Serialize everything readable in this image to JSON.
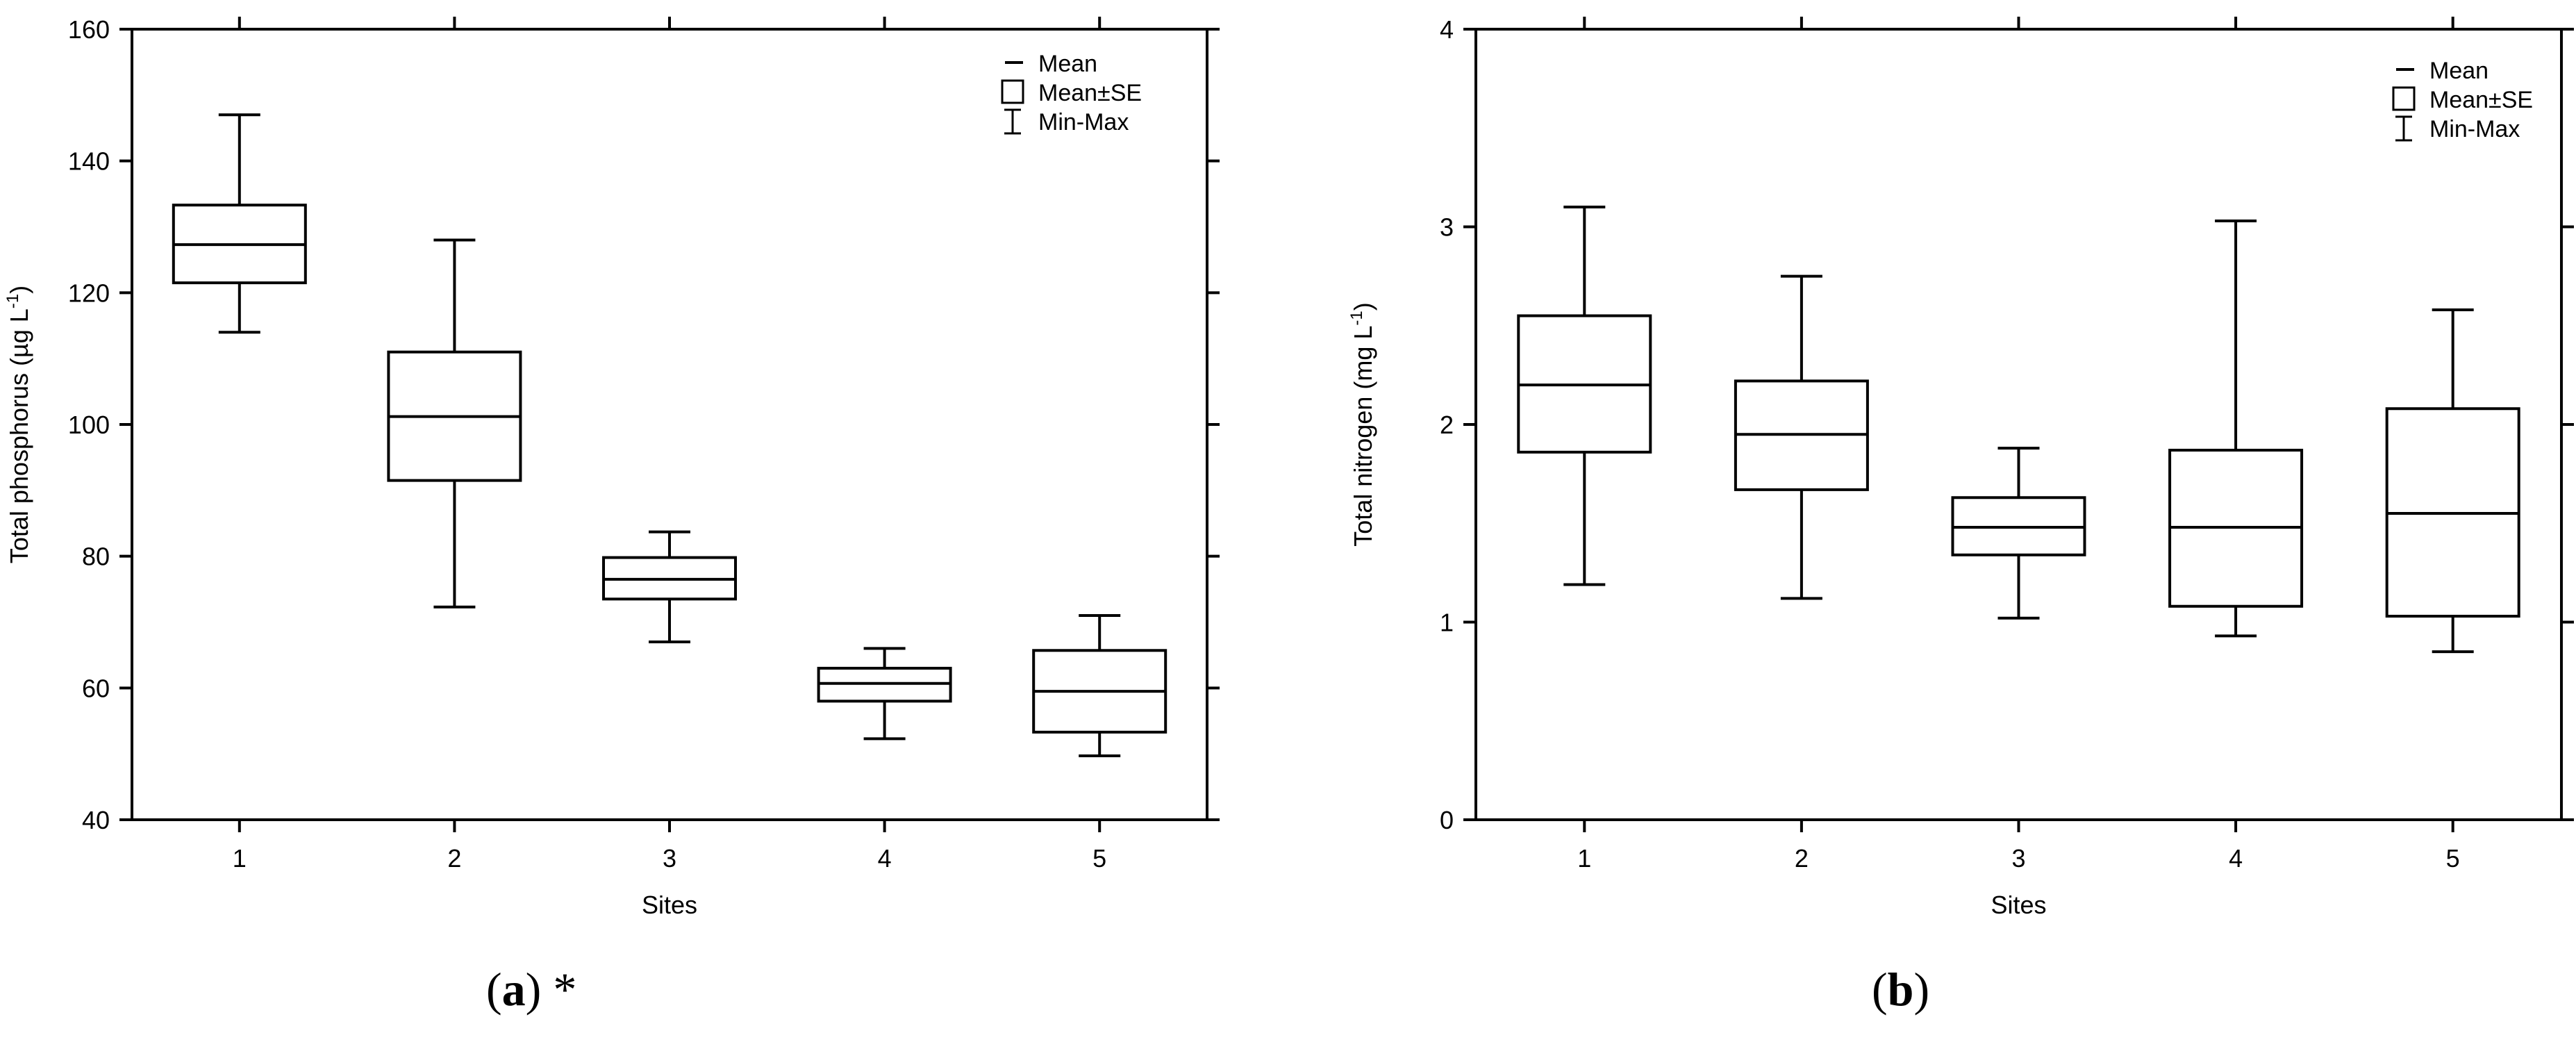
{
  "chart_data": [
    {
      "type": "box",
      "panel_label": "a",
      "panel_suffix": " *",
      "xlabel": "Sites",
      "ylabel": "Total phosphorus (µg L",
      "ylabel_sup": "-1",
      "ylabel_close": ")",
      "ylim": [
        40,
        160
      ],
      "yticks": [
        40,
        60,
        80,
        100,
        120,
        140,
        160
      ],
      "categories": [
        "1",
        "2",
        "3",
        "4",
        "5"
      ],
      "boxes": [
        {
          "mean": 127.3,
          "se_low": 121.5,
          "se_high": 133.3,
          "min": 114.0,
          "max": 147.0
        },
        {
          "mean": 101.2,
          "se_low": 91.5,
          "se_high": 111.0,
          "min": 72.3,
          "max": 128.0
        },
        {
          "mean": 76.5,
          "se_low": 73.5,
          "se_high": 79.8,
          "min": 67.0,
          "max": 83.7
        },
        {
          "mean": 60.7,
          "se_low": 58.0,
          "se_high": 63.0,
          "min": 52.3,
          "max": 66.0
        },
        {
          "mean": 59.5,
          "se_low": 53.3,
          "se_high": 65.7,
          "min": 49.7,
          "max": 71.0
        }
      ],
      "legend": [
        "Mean",
        "Mean±SE",
        "Min-Max"
      ],
      "legend_position": "top-right",
      "grid": false
    },
    {
      "type": "box",
      "panel_label": "b",
      "panel_suffix": "",
      "xlabel": "Sites",
      "ylabel": "Total nitrogen (mg L",
      "ylabel_sup": "-1",
      "ylabel_close": ")",
      "ylim": [
        0,
        4
      ],
      "yticks": [
        0,
        1,
        2,
        3,
        4
      ],
      "categories": [
        "1",
        "2",
        "3",
        "4",
        "5"
      ],
      "boxes": [
        {
          "mean": 2.2,
          "se_low": 1.86,
          "se_high": 2.55,
          "min": 1.19,
          "max": 3.1
        },
        {
          "mean": 1.95,
          "se_low": 1.67,
          "se_high": 2.22,
          "min": 1.12,
          "max": 2.75
        },
        {
          "mean": 1.48,
          "se_low": 1.34,
          "se_high": 1.63,
          "min": 1.02,
          "max": 1.88
        },
        {
          "mean": 1.48,
          "se_low": 1.08,
          "se_high": 1.87,
          "min": 0.93,
          "max": 3.03
        },
        {
          "mean": 1.55,
          "se_low": 1.03,
          "se_high": 2.08,
          "min": 0.85,
          "max": 2.58
        }
      ],
      "legend": [
        "Mean",
        "Mean±SE",
        "Min-Max"
      ],
      "legend_position": "top-right",
      "grid": false
    }
  ]
}
